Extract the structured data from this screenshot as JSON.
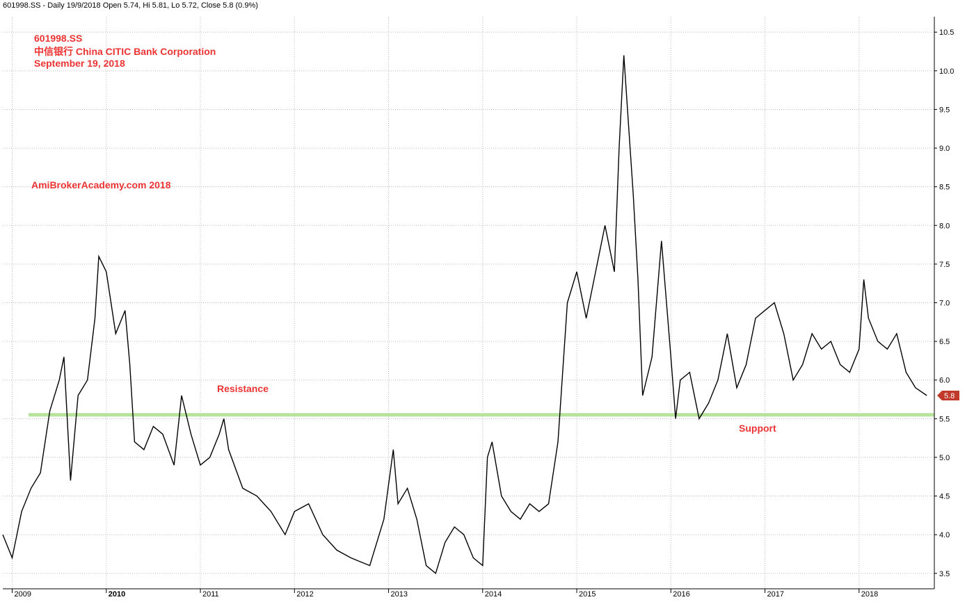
{
  "header": {
    "info": "601998.SS - Daily 19/9/2018 Open 5.74, Hi 5.81, Lo 5.72, Close 5.8 (0.9%)"
  },
  "annotations": {
    "ticker": "601998.SS",
    "company": "中信银行 China CITIC Bank Corporation",
    "date": "September 19, 2018",
    "watermark": "AmiBrokerAcademy.com  2018",
    "resistance": "Resistance",
    "support": "Support"
  },
  "price_marker": {
    "label": "5.8",
    "value": 5.8,
    "color": "#c0392b"
  },
  "colors": {
    "annotation": "#ee3333",
    "level_line": "#b6e39a",
    "price": "#000000"
  },
  "chart_data": {
    "type": "line",
    "title": "601998.SS",
    "x_tick_labels": [
      "2009",
      "2010",
      "2011",
      "2012",
      "2013",
      "2014",
      "2015",
      "2016",
      "2017",
      "2018"
    ],
    "y_tick_labels": [
      "3.5",
      "4.0",
      "4.5",
      "5.0",
      "5.5",
      "6.0",
      "6.5",
      "7.0",
      "7.5",
      "8.0",
      "8.5",
      "9.0",
      "9.5",
      "10.0",
      "10.5"
    ],
    "ylim": [
      3.3,
      10.7
    ],
    "xlim": [
      2008.9,
      2018.8
    ],
    "support_resistance_level": 5.55,
    "grid": true,
    "legend": "none",
    "series": [
      {
        "x": [
          2008.9,
          2009.0,
          2009.1,
          2009.2,
          2009.3,
          2009.4,
          2009.5,
          2009.55,
          2009.62,
          2009.7,
          2009.8,
          2009.88,
          2009.92,
          2010.0,
          2010.1,
          2010.2,
          2010.25,
          2010.3,
          2010.4,
          2010.5,
          2010.6,
          2010.72,
          2010.8,
          2010.9,
          2011.0,
          2011.1,
          2011.2,
          2011.25,
          2011.3,
          2011.45,
          2011.6,
          2011.75,
          2011.9,
          2012.0,
          2012.15,
          2012.3,
          2012.45,
          2012.6,
          2012.8,
          2012.95,
          2013.05,
          2013.1,
          2013.2,
          2013.3,
          2013.4,
          2013.5,
          2013.6,
          2013.7,
          2013.8,
          2013.9,
          2014.0,
          2014.05,
          2014.1,
          2014.2,
          2014.3,
          2014.4,
          2014.5,
          2014.6,
          2014.7,
          2014.8,
          2014.9,
          2015.0,
          2015.1,
          2015.2,
          2015.3,
          2015.4,
          2015.45,
          2015.5,
          2015.6,
          2015.65,
          2015.7,
          2015.8,
          2015.9,
          2016.0,
          2016.05,
          2016.1,
          2016.2,
          2016.3,
          2016.4,
          2016.5,
          2016.6,
          2016.7,
          2016.8,
          2016.9,
          2017.0,
          2017.1,
          2017.2,
          2017.3,
          2017.4,
          2017.5,
          2017.6,
          2017.7,
          2017.8,
          2017.9,
          2018.0,
          2018.05,
          2018.1,
          2018.2,
          2018.3,
          2018.4,
          2018.5,
          2018.6,
          2018.72
        ],
        "y": [
          4.0,
          3.7,
          4.3,
          4.6,
          4.8,
          5.6,
          6.0,
          6.3,
          4.7,
          5.8,
          6.0,
          6.8,
          7.6,
          7.4,
          6.6,
          6.9,
          6.2,
          5.2,
          5.1,
          5.4,
          5.3,
          4.9,
          5.8,
          5.3,
          4.9,
          5.0,
          5.3,
          5.5,
          5.1,
          4.6,
          4.5,
          4.3,
          4.0,
          4.3,
          4.4,
          4.0,
          3.8,
          3.7,
          3.6,
          4.2,
          5.1,
          4.4,
          4.6,
          4.2,
          3.6,
          3.5,
          3.9,
          4.1,
          4.0,
          3.7,
          3.6,
          5.0,
          5.2,
          4.5,
          4.3,
          4.2,
          4.4,
          4.3,
          4.4,
          5.2,
          7.0,
          7.4,
          6.8,
          7.4,
          8.0,
          7.4,
          9.0,
          10.2,
          8.4,
          7.3,
          5.8,
          6.3,
          7.8,
          6.3,
          5.5,
          6.0,
          6.1,
          5.5,
          5.7,
          6.0,
          6.6,
          5.9,
          6.2,
          6.8,
          6.9,
          7.0,
          6.6,
          6.0,
          6.2,
          6.6,
          6.4,
          6.5,
          6.2,
          6.1,
          6.4,
          7.3,
          6.8,
          6.5,
          6.4,
          6.6,
          6.1,
          5.9,
          5.8
        ]
      }
    ]
  }
}
